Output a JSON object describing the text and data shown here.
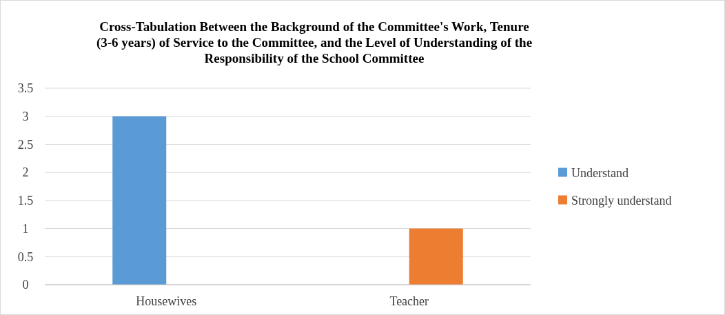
{
  "chart_data": {
    "type": "bar",
    "title": "Cross-Tabulation  Between the Background of the Committee's Work,  Tenure\n(3-6 years) of Service to the Committee, and the Level of Understanding  of the\nResponsibility  of the School Committee",
    "categories": [
      "Housewives",
      "Teacher"
    ],
    "series": [
      {
        "name": "Understand",
        "color": "#5b9bd5",
        "values": [
          3,
          0
        ]
      },
      {
        "name": "Strongly understand",
        "color": "#ed7d31",
        "values": [
          0,
          1
        ]
      }
    ],
    "ylim": [
      0,
      3.5
    ],
    "yticks": [
      0,
      0.5,
      1,
      1.5,
      2,
      2.5,
      3,
      3.5
    ],
    "grid": "y",
    "legend": "right"
  }
}
